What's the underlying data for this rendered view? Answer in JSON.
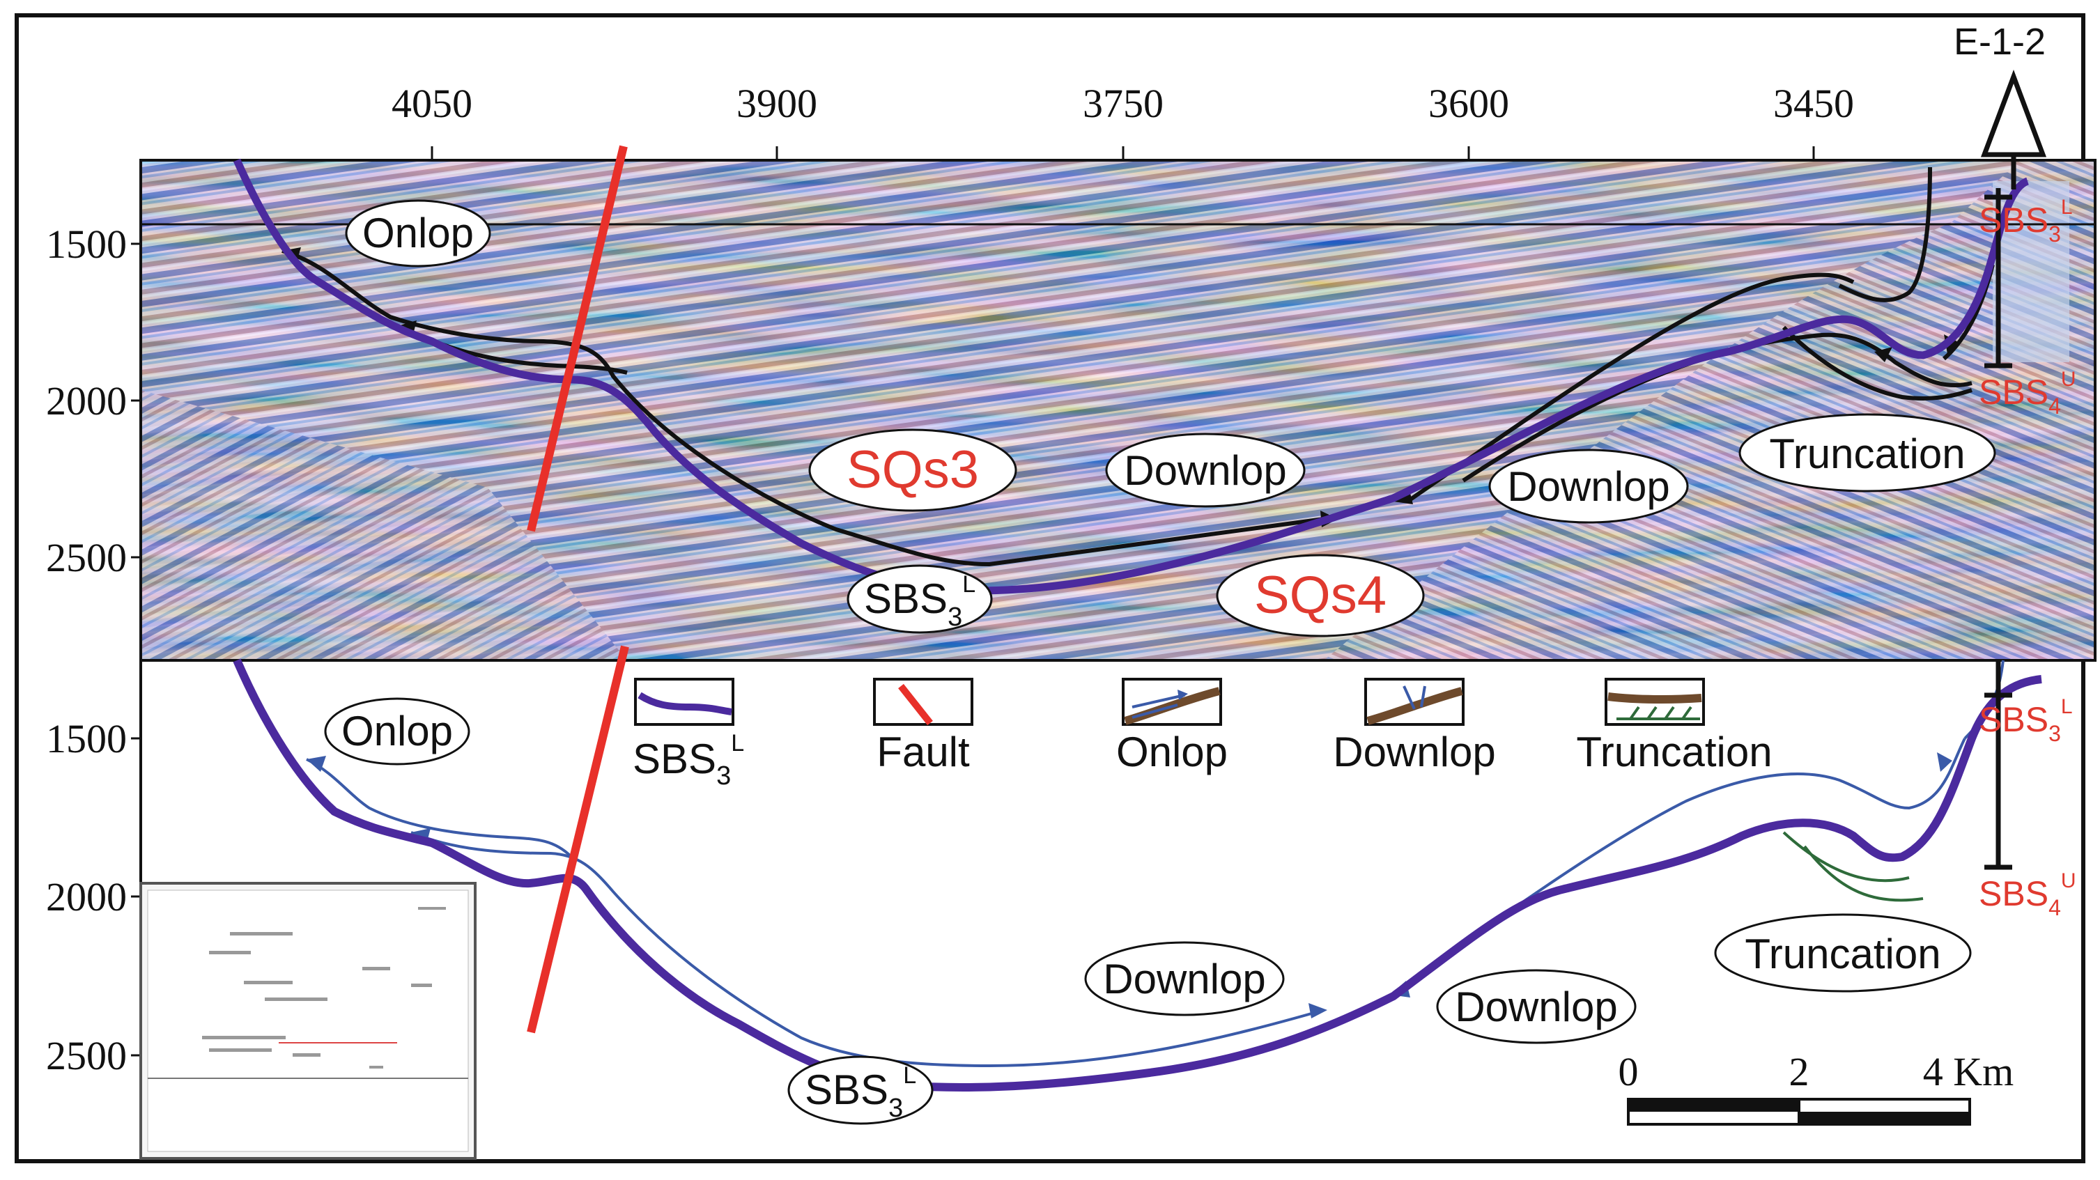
{
  "well": {
    "name": "E-1-2"
  },
  "x_axis": {
    "ticks": [
      "4050",
      "3900",
      "3750",
      "3600",
      "3450"
    ]
  },
  "y_axis_upper": {
    "ticks": [
      "1500",
      "2000",
      "2500"
    ]
  },
  "y_axis_lower": {
    "ticks": [
      "1500",
      "2000",
      "2500"
    ]
  },
  "upper_panel": {
    "labels": {
      "onlop": "Onlop",
      "sqs3": "SQs3",
      "sqs4": "SQs4",
      "downlop_1": "Downlop",
      "downlop_2": "Downlop",
      "truncation": "Truncation",
      "sbs3l": {
        "base": "SBS",
        "sub": "3",
        "sup": "L"
      },
      "well_top": {
        "base": "SBS",
        "sub": "3",
        "sup": "L"
      },
      "well_bottom": {
        "base": "SBS",
        "sub": "4",
        "sup": "U"
      }
    }
  },
  "lower_panel": {
    "labels": {
      "onlop": "Onlop",
      "downlop_1": "Downlop",
      "downlop_2": "Downlop",
      "truncation": "Truncation",
      "sbs3l": {
        "base": "SBS",
        "sub": "3",
        "sup": "L"
      },
      "well_top": {
        "base": "SBS",
        "sub": "3",
        "sup": "L"
      },
      "well_bottom": {
        "base": "SBS",
        "sub": "4",
        "sup": "U"
      }
    }
  },
  "legend": {
    "items": [
      {
        "label": "SBS",
        "sub": "3",
        "sup": "L"
      },
      {
        "label": "Fault"
      },
      {
        "label": "Onlop"
      },
      {
        "label": "Downlop"
      },
      {
        "label": "Truncation"
      }
    ]
  },
  "scale_bar": {
    "labels": [
      "0",
      "2",
      "4 Km"
    ]
  },
  "colors": {
    "boundary": "#4b2a9e",
    "fault": "#e8302a",
    "reflector": "#111111",
    "onlop_line": "#3a5aa8",
    "truncation_line": "#2e6b3a",
    "label_red": "#e03a2f"
  }
}
